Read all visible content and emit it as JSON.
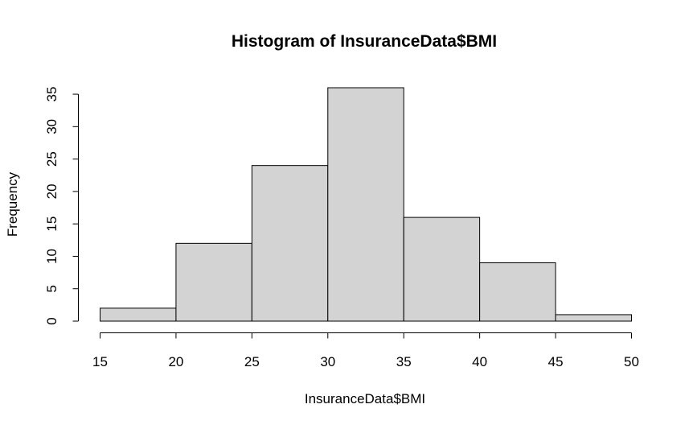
{
  "chart_data": {
    "type": "bar",
    "histogram": true,
    "title": "Histogram of InsuranceData$BMI",
    "xlabel": "InsuranceData$BMI",
    "ylabel": "Frequency",
    "bins": [
      [
        15,
        20
      ],
      [
        20,
        25
      ],
      [
        25,
        30
      ],
      [
        30,
        35
      ],
      [
        35,
        40
      ],
      [
        40,
        45
      ],
      [
        45,
        50
      ]
    ],
    "values": [
      2,
      12,
      24,
      36,
      16,
      9,
      1
    ],
    "xlim": [
      15,
      50
    ],
    "ylim": [
      0,
      35
    ],
    "x_ticks": [
      15,
      20,
      25,
      30,
      35,
      40,
      45,
      50
    ],
    "y_ticks": [
      0,
      5,
      10,
      15,
      20,
      25,
      30,
      35
    ],
    "bar_color": "#d3d3d3",
    "edge_color": "#000000",
    "grid": false
  }
}
